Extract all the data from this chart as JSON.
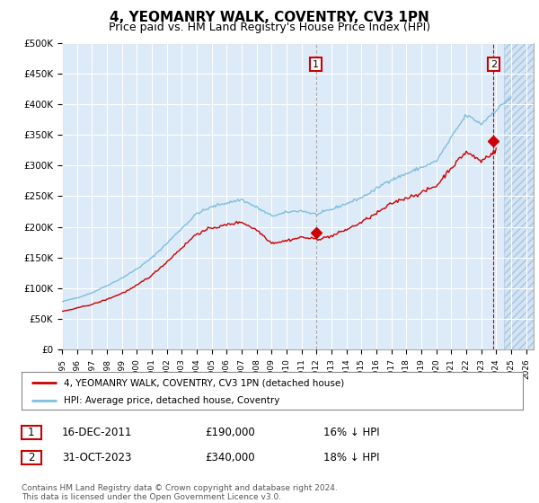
{
  "title": "4, YEOMANRY WALK, COVENTRY, CV3 1PN",
  "subtitle": "Price paid vs. HM Land Registry's House Price Index (HPI)",
  "title_fontsize": 11,
  "subtitle_fontsize": 9,
  "ylim": [
    0,
    500000
  ],
  "yticks": [
    0,
    50000,
    100000,
    150000,
    200000,
    250000,
    300000,
    350000,
    400000,
    450000,
    500000
  ],
  "ytick_labels": [
    "£0",
    "£50K",
    "£100K",
    "£150K",
    "£200K",
    "£250K",
    "£300K",
    "£350K",
    "£400K",
    "£450K",
    "£500K"
  ],
  "xlim_start": 1995.0,
  "xlim_end": 2026.5,
  "hpi_color": "#7fbfdf",
  "property_color": "#cc0000",
  "transaction1_line_color": "#aaaaaa",
  "transaction2_line_color": "#cc0000",
  "marker_box_color": "#cc0000",
  "transaction1_x": 2011.96,
  "transaction1_y": 190000,
  "transaction2_x": 2023.83,
  "transaction2_y": 340000,
  "legend_label_red": "4, YEOMANRY WALK, COVENTRY, CV3 1PN (detached house)",
  "legend_label_blue": "HPI: Average price, detached house, Coventry",
  "table_row1_date": "16-DEC-2011",
  "table_row1_price": "£190,000",
  "table_row1_hpi": "16% ↓ HPI",
  "table_row2_date": "31-OCT-2023",
  "table_row2_price": "£340,000",
  "table_row2_hpi": "18% ↓ HPI",
  "footer": "Contains HM Land Registry data © Crown copyright and database right 2024.\nThis data is licensed under the Open Government Licence v3.0.",
  "plot_bg_color": "#ddeaf7",
  "grid_color": "#ffffff",
  "future_start": 2024.5,
  "hatch_line_color": "#aac4e0"
}
